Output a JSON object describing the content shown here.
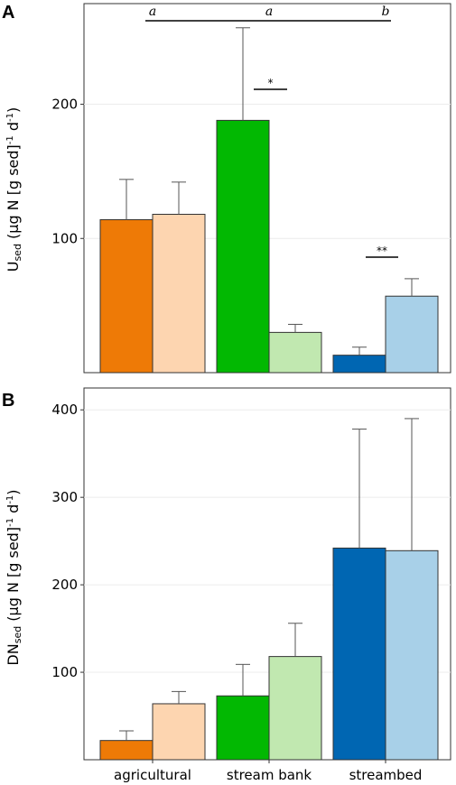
{
  "colors": {
    "agricultural_dark": "#ee7a06",
    "agricultural_light": "#fdd5b0",
    "stream_bank_dark": "#02b802",
    "stream_bank_light": "#c1e8b0",
    "streambed_dark": "#0066b2",
    "streambed_light": "#a8d0e8"
  },
  "chart_data": [
    {
      "type": "bar",
      "panel_label": "A",
      "ylabel": {
        "main": "U",
        "sub": "sed",
        "rest_a": " (µg N [g sed]",
        "sup1": "-1",
        "rest_b": " d",
        "sup2": "-1",
        "rest_c": ")"
      },
      "categories": [
        "agricultural",
        "stream bank",
        "streambed"
      ],
      "yticks": [
        100,
        200
      ],
      "ylim": [
        0,
        275
      ],
      "grid": true,
      "bars": [
        {
          "category": "agricultural",
          "value": 114,
          "error": 30,
          "color": "#ee7a06"
        },
        {
          "category": "agricultural",
          "value": 118,
          "error": 24,
          "color": "#fdd5b0"
        },
        {
          "category": "stream bank",
          "value": 188,
          "error": 69,
          "color": "#02b802"
        },
        {
          "category": "stream bank",
          "value": 30,
          "error": 6,
          "color": "#c1e8b0"
        },
        {
          "category": "streambed",
          "value": 13,
          "error": 6,
          "color": "#0066b2"
        },
        {
          "category": "streambed",
          "value": 57,
          "error": 13,
          "color": "#a8d0e8"
        }
      ],
      "group_letters": [
        "a",
        "a",
        "b"
      ],
      "significance": [
        {
          "category": "stream bank",
          "label": "*"
        },
        {
          "category": "streambed",
          "label": "**"
        }
      ]
    },
    {
      "type": "bar",
      "panel_label": "B",
      "ylabel": {
        "main": "DN",
        "sub": "sed",
        "rest_a": " (µg N [g sed]",
        "sup1": "-1",
        "rest_b": " d",
        "sup2": "-1",
        "rest_c": ")"
      },
      "categories": [
        "agricultural",
        "stream bank",
        "streambed"
      ],
      "yticks": [
        100,
        200,
        300,
        400
      ],
      "ylim": [
        0,
        425
      ],
      "grid": true,
      "bars": [
        {
          "category": "agricultural",
          "value": 22,
          "error": 11,
          "color": "#ee7a06"
        },
        {
          "category": "agricultural",
          "value": 64,
          "error": 14,
          "color": "#fdd5b0"
        },
        {
          "category": "stream bank",
          "value": 73,
          "error": 36,
          "color": "#02b802"
        },
        {
          "category": "stream bank",
          "value": 118,
          "error": 38,
          "color": "#c1e8b0"
        },
        {
          "category": "streambed",
          "value": 242,
          "error": 136,
          "color": "#0066b2"
        },
        {
          "category": "streambed",
          "value": 239,
          "error": 151,
          "color": "#a8d0e8"
        }
      ]
    }
  ]
}
